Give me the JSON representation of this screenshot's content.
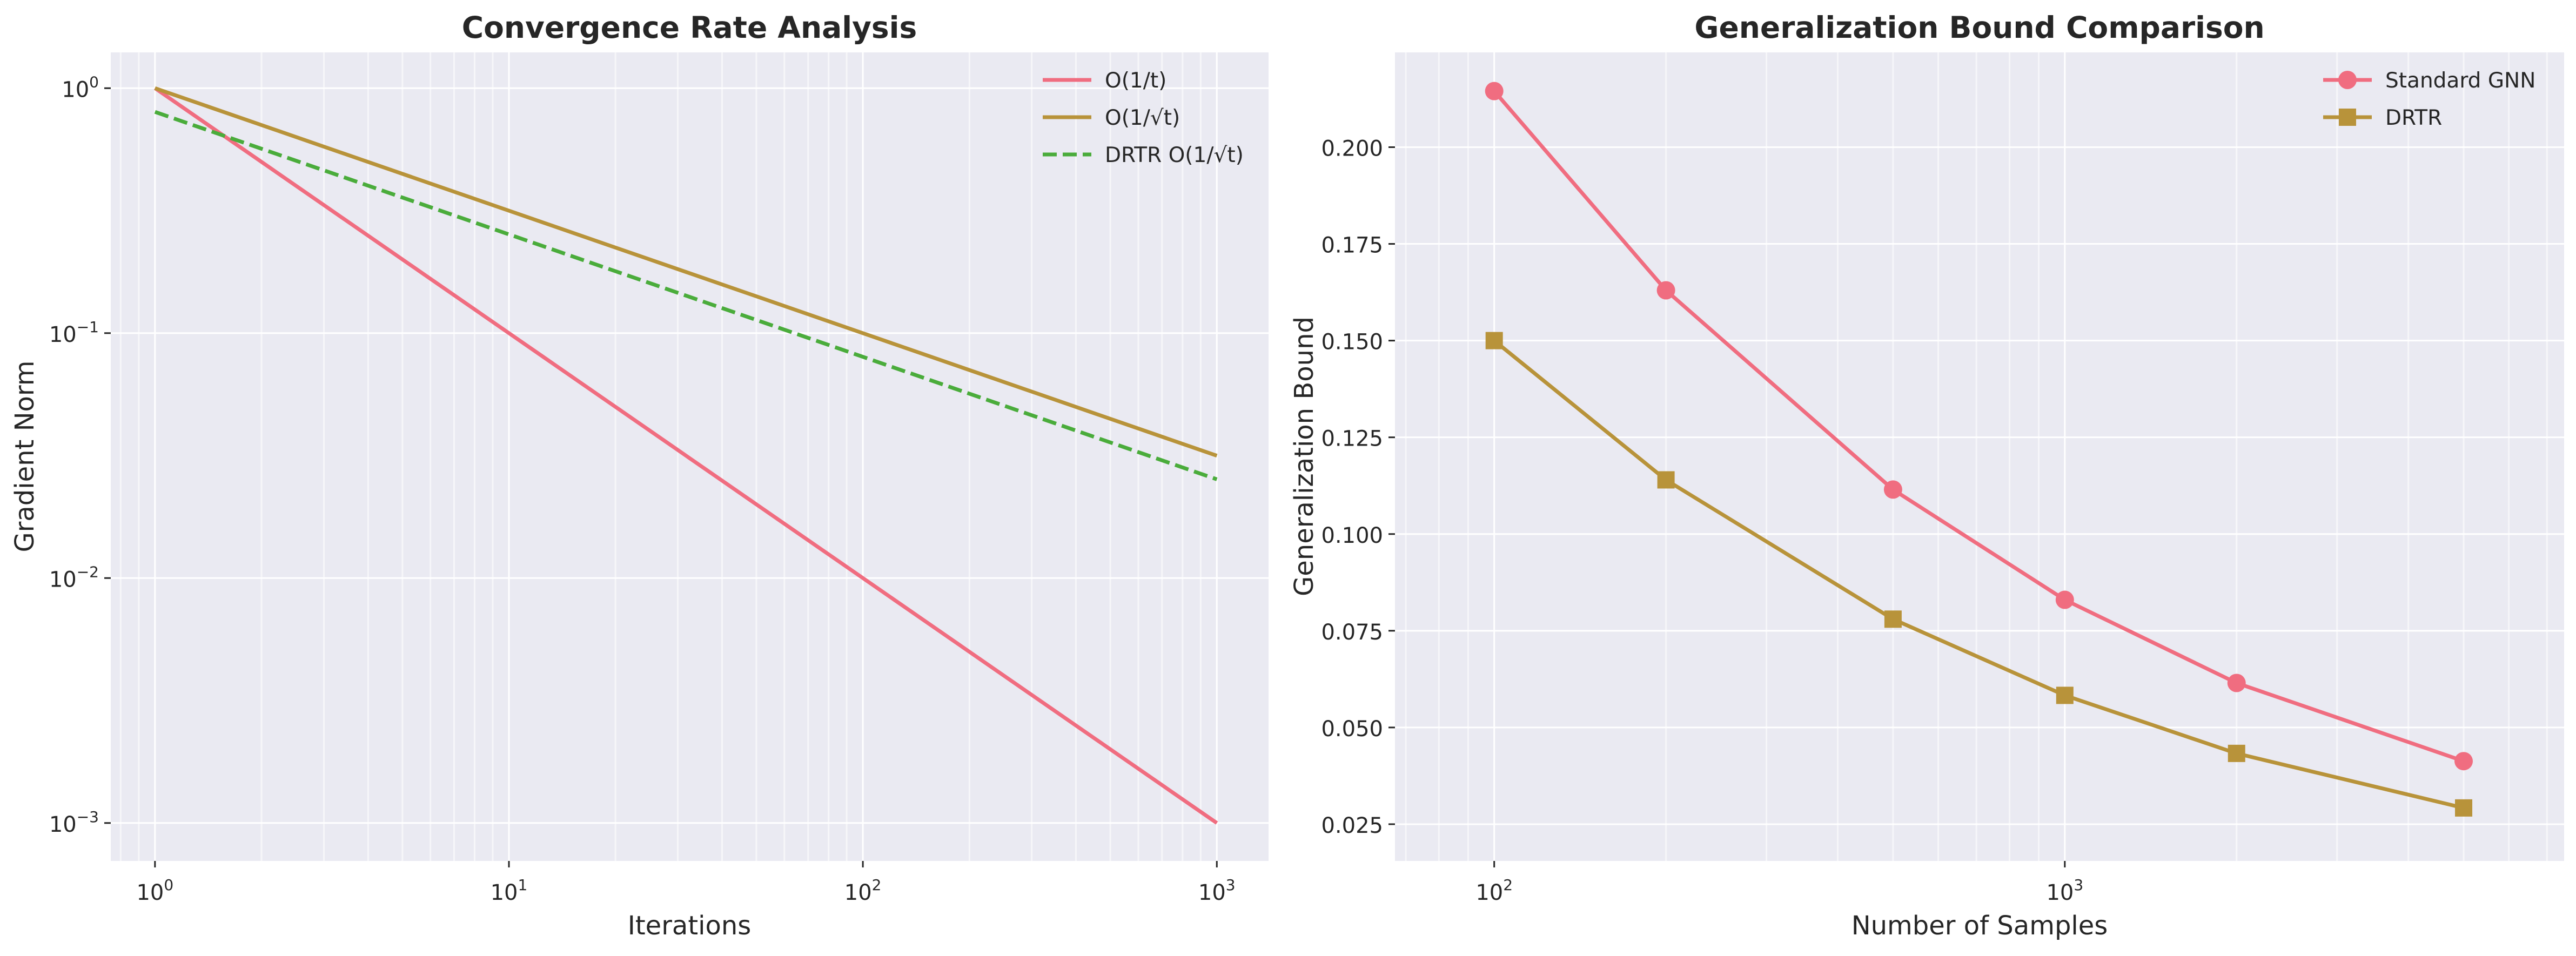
{
  "chart_data": [
    {
      "type": "line",
      "title": "Convergence Rate Analysis",
      "xlabel": "Iterations",
      "ylabel": "Gradient Norm",
      "xscale": "log",
      "yscale": "log",
      "xlim": [
        0.75,
        1400
      ],
      "ylim": [
        0.0007,
        1.4
      ],
      "grid": true,
      "legend_position": "top-right",
      "xticks": [
        {
          "base": "10",
          "exp": "0",
          "value": 1
        },
        {
          "base": "10",
          "exp": "1",
          "value": 10
        },
        {
          "base": "10",
          "exp": "2",
          "value": 100
        },
        {
          "base": "10",
          "exp": "3",
          "value": 1000
        }
      ],
      "yticks": [
        {
          "base": "10",
          "exp": "0",
          "value": 1
        },
        {
          "base": "10",
          "exp": "−1",
          "value": 0.1
        },
        {
          "base": "10",
          "exp": "−2",
          "value": 0.01
        },
        {
          "base": "10",
          "exp": "−3",
          "value": 0.001
        }
      ],
      "series": [
        {
          "name": "O(1/t)",
          "color": "#f06d80",
          "dash": "solid",
          "x": [
            1,
            1000
          ],
          "y": [
            1.0,
            0.001
          ]
        },
        {
          "name": "O(1/√t)",
          "color": "#b8933a",
          "dash": "solid",
          "x": [
            1,
            1000
          ],
          "y": [
            1.0,
            0.0316
          ]
        },
        {
          "name": "DRTR O(1/√t)",
          "color": "#4aac3b",
          "dash": "dashed",
          "x": [
            1,
            1000
          ],
          "y": [
            0.8,
            0.0253
          ]
        }
      ]
    },
    {
      "type": "line",
      "title": "Generalization Bound Comparison",
      "xlabel": "Number of Samples",
      "ylabel": "Generalization Bound",
      "xscale": "log",
      "yscale": "linear",
      "xlim": [
        67,
        7500
      ],
      "ylim": [
        0.0155,
        0.2245
      ],
      "grid": true,
      "legend_position": "top-right",
      "xticks": [
        {
          "base": "10",
          "exp": "2",
          "value": 100
        },
        {
          "base": "10",
          "exp": "3",
          "value": 1000
        }
      ],
      "yticks": [
        {
          "label": "0.025",
          "value": 0.025
        },
        {
          "label": "0.050",
          "value": 0.05
        },
        {
          "label": "0.075",
          "value": 0.075
        },
        {
          "label": "0.100",
          "value": 0.1
        },
        {
          "label": "0.125",
          "value": 0.125
        },
        {
          "label": "0.150",
          "value": 0.15
        },
        {
          "label": "0.175",
          "value": 0.175
        },
        {
          "label": "0.200",
          "value": 0.2
        }
      ],
      "x": [
        100,
        200,
        500,
        1000,
        2000,
        5000
      ],
      "series": [
        {
          "name": "Standard GNN",
          "color": "#f06d80",
          "marker": "circle",
          "values": [
            0.2145,
            0.163,
            0.1115,
            0.083,
            0.0615,
            0.0413
          ]
        },
        {
          "name": "DRTR",
          "color": "#b8933a",
          "marker": "square",
          "values": [
            0.15,
            0.114,
            0.078,
            0.0583,
            0.0433,
            0.0292
          ]
        }
      ]
    }
  ]
}
